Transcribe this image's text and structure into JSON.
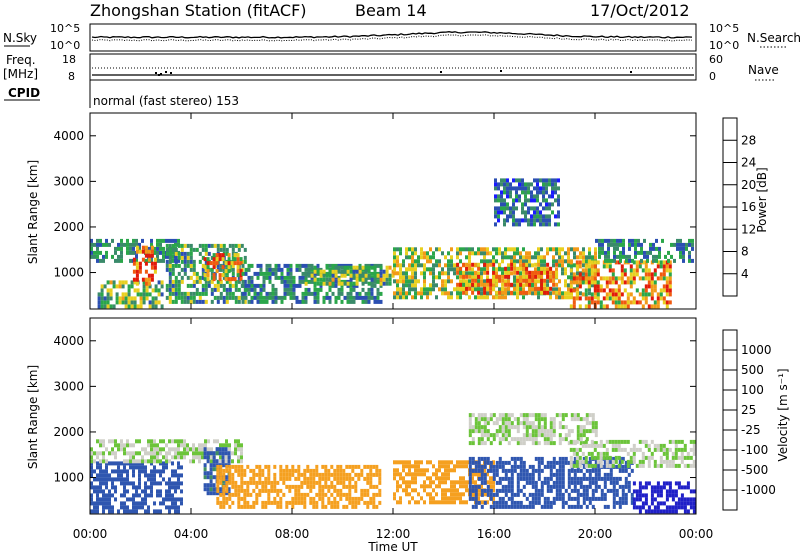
{
  "header": {
    "station": "Zhongshan Station (fitACF)",
    "beam": "Beam 14",
    "date": "17/Oct/2012"
  },
  "top_panels": {
    "nsky": {
      "label": "N.Sky",
      "right_label": "N.Search",
      "left_ticks": [
        "10^5",
        "10^0"
      ],
      "right_ticks": [
        "10^5",
        "10^0"
      ]
    },
    "freq": {
      "label_line1": "Freq.",
      "label_line2": "[MHz]",
      "left_ticks": [
        "18",
        "8"
      ],
      "right_ticks": [
        "60",
        "0"
      ],
      "right_label": "Nave"
    },
    "cpid": {
      "label": "CPID",
      "value": "normal (fast stereo) 153"
    }
  },
  "colors": {
    "power_scale": [
      "#1a1aff",
      "#2b4fb2",
      "#3a8a6a",
      "#2aa64a",
      "#e8d020",
      "#f29a18",
      "#f05a10",
      "#e21a0a"
    ],
    "velocity_scale": [
      "#e81010",
      "#f05a10",
      "#f5a020",
      "#c8c8c0",
      "#cfcfc8",
      "#6cc43a",
      "#3f8f60",
      "#2f56b0",
      "#2020c8"
    ]
  },
  "chart_data": [
    {
      "type": "heatmap",
      "name": "power",
      "ylabel": "Slant Range [km]",
      "yticks": [
        "4000",
        "3000",
        "2000",
        "1000"
      ],
      "ylim": [
        200,
        4500
      ],
      "xlim": [
        "00:00",
        "24:00"
      ],
      "colorbar_label": "Power [dB]",
      "colorbar_ticks": [
        "28",
        "24",
        "20",
        "16",
        "12",
        "8",
        "4"
      ],
      "clim": [
        0,
        32
      ],
      "echo_regions": [
        {
          "t0": 0.0,
          "t1": 3.5,
          "r0": 1300,
          "r1": 1750,
          "val": 10
        },
        {
          "t0": 0.3,
          "t1": 2.8,
          "r0": 300,
          "r1": 900,
          "val": 14
        },
        {
          "t0": 1.7,
          "t1": 2.6,
          "r0": 800,
          "r1": 1600,
          "val": 26
        },
        {
          "t0": 3.0,
          "t1": 6.2,
          "r0": 400,
          "r1": 1700,
          "val": 12
        },
        {
          "t0": 4.5,
          "t1": 6.0,
          "r0": 900,
          "r1": 1500,
          "val": 22
        },
        {
          "t0": 6.0,
          "t1": 11.5,
          "r0": 400,
          "r1": 1200,
          "val": 10
        },
        {
          "t0": 8.5,
          "t1": 12.0,
          "r0": 800,
          "r1": 1200,
          "val": 14
        },
        {
          "t0": 12.0,
          "t1": 20.0,
          "r0": 500,
          "r1": 1600,
          "val": 16
        },
        {
          "t0": 14.5,
          "t1": 18.5,
          "r0": 600,
          "r1": 1300,
          "val": 24
        },
        {
          "t0": 16.0,
          "t1": 18.5,
          "r0": 2100,
          "r1": 3100,
          "val": 8
        },
        {
          "t0": 19.0,
          "t1": 23.0,
          "r0": 300,
          "r1": 1300,
          "val": 22
        },
        {
          "t0": 20.0,
          "t1": 24.0,
          "r0": 1300,
          "r1": 1800,
          "val": 10
        }
      ]
    },
    {
      "type": "heatmap",
      "name": "velocity",
      "ylabel": "Slant Range [km]",
      "yticks": [
        "4000",
        "3000",
        "2000",
        "1000"
      ],
      "ylim": [
        200,
        4500
      ],
      "xlim": [
        "00:00",
        "24:00"
      ],
      "xticks": [
        "00:00",
        "04:00",
        "08:00",
        "12:00",
        "16:00",
        "20:00",
        "00:00"
      ],
      "xlabel": "Time UT",
      "colorbar_label": "Velocity [m s⁻¹]",
      "colorbar_ticks": [
        "1000",
        "500",
        "100",
        "25",
        "-25",
        "-100",
        "-500",
        "-1000"
      ],
      "echo_regions": [
        {
          "t0": 0.0,
          "t1": 3.6,
          "r0": 300,
          "r1": 1400,
          "val": 300
        },
        {
          "t0": 0.0,
          "t1": 6.0,
          "r0": 1400,
          "r1": 1900,
          "val": 0
        },
        {
          "t0": 4.5,
          "t1": 5.5,
          "r0": 700,
          "r1": 1700,
          "val": 120
        },
        {
          "t0": 5.0,
          "t1": 11.5,
          "r0": 400,
          "r1": 1300,
          "val": -300
        },
        {
          "t0": 12.0,
          "t1": 16.0,
          "r0": 500,
          "r1": 1400,
          "val": -250
        },
        {
          "t0": 15.0,
          "t1": 21.5,
          "r0": 400,
          "r1": 1500,
          "val": 300
        },
        {
          "t0": 15.0,
          "t1": 20.0,
          "r0": 1800,
          "r1": 2500,
          "val": 0
        },
        {
          "t0": 21.5,
          "t1": 24.0,
          "r0": 300,
          "r1": 1000,
          "val": 800
        },
        {
          "t0": 19.0,
          "t1": 24.0,
          "r0": 1300,
          "r1": 1900,
          "val": 0
        }
      ]
    }
  ]
}
